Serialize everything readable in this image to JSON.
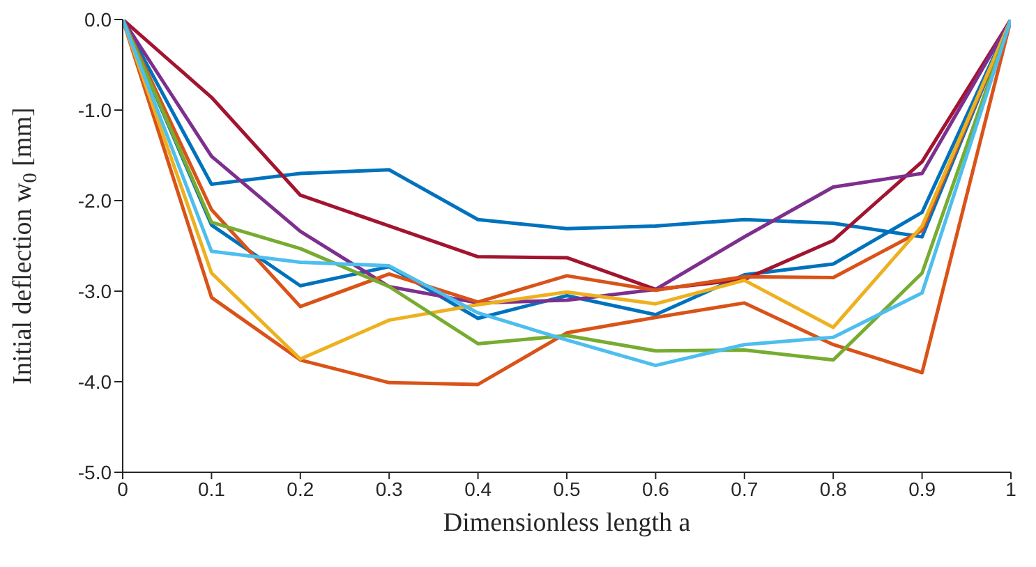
{
  "chart_data": {
    "type": "line",
    "xlabel": "Dimensionless length a",
    "ylabel": "Initial deflection w$_{0}$ [mm]",
    "x": [
      0,
      0.1,
      0.2,
      0.3,
      0.4,
      0.5,
      0.6,
      0.7,
      0.8,
      0.9,
      1
    ],
    "series": [
      {
        "color": "#0072bd",
        "values": [
          0,
          -1.82,
          -1.7,
          -1.66,
          -2.21,
          -2.31,
          -2.28,
          -2.21,
          -2.25,
          -2.4,
          0
        ]
      },
      {
        "color": "#0072bd",
        "values": [
          0,
          -2.27,
          -2.94,
          -2.73,
          -3.3,
          -3.05,
          -3.26,
          -2.82,
          -2.7,
          -2.13,
          0
        ]
      },
      {
        "color": "#a2142f",
        "values": [
          0,
          -0.86,
          -1.94,
          -2.28,
          -2.62,
          -2.63,
          -2.98,
          -2.87,
          -2.44,
          -1.57,
          0
        ]
      },
      {
        "color": "#7e2f8e",
        "values": [
          0,
          -1.51,
          -2.34,
          -2.95,
          -3.13,
          -3.1,
          -2.98,
          -2.4,
          -1.85,
          -1.7,
          0
        ]
      },
      {
        "color": "#d95319",
        "values": [
          0,
          -2.1,
          -3.17,
          -2.81,
          -3.12,
          -2.83,
          -2.99,
          -2.84,
          -2.85,
          -2.33,
          0
        ]
      },
      {
        "color": "#d95319",
        "values": [
          0,
          -3.07,
          -3.76,
          -4.01,
          -4.03,
          -3.46,
          -3.29,
          -3.13,
          -3.59,
          -3.9,
          0
        ]
      },
      {
        "color": "#edb120",
        "values": [
          0,
          -2.8,
          -3.75,
          -3.32,
          -3.15,
          -3.01,
          -3.14,
          -2.88,
          -3.4,
          -2.28,
          0
        ]
      },
      {
        "color": "#77ac30",
        "values": [
          0,
          -2.24,
          -2.53,
          -2.95,
          -3.58,
          -3.49,
          -3.66,
          -3.65,
          -3.76,
          -2.8,
          0
        ]
      },
      {
        "color": "#4dbeee",
        "values": [
          0,
          -2.56,
          -2.68,
          -2.72,
          -3.24,
          -3.54,
          -3.82,
          -3.59,
          -3.51,
          -3.02,
          0
        ]
      }
    ],
    "xlim": [
      0,
      1
    ],
    "xticks": [
      0,
      0.1,
      0.2,
      0.3,
      0.4,
      0.5,
      0.6,
      0.7,
      0.8,
      0.9,
      1
    ],
    "ylim": [
      -5,
      0
    ],
    "yticks": [
      {
        "value": -5,
        "label": "-5.0"
      },
      {
        "value": -4,
        "label": "-4.0"
      },
      {
        "value": -3,
        "label": "-3.0"
      },
      {
        "value": -2,
        "label": "-2.0"
      },
      {
        "value": -1,
        "label": "-1.0"
      },
      {
        "value": 0,
        "label": "0.0"
      }
    ],
    "grid": false,
    "marker": "none",
    "line_style": "solid"
  }
}
